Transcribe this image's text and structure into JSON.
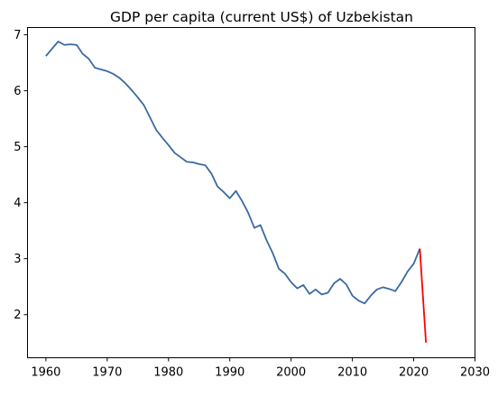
{
  "chart_data": {
    "type": "line",
    "title": "GDP per capita (current US$) of Uzbekistan",
    "xlabel": "",
    "ylabel": "",
    "xlim": [
      1957,
      2030
    ],
    "ylim": [
      1.23,
      7.13
    ],
    "xticks": [
      1960,
      1970,
      1980,
      1990,
      2000,
      2010,
      2020,
      2030
    ],
    "yticks": [
      2,
      3,
      4,
      5,
      6,
      7
    ],
    "grid": false,
    "series": [
      {
        "color": "#3a6aa0",
        "x": [
          1960,
          1961,
          1962,
          1963,
          1964,
          1965,
          1966,
          1967,
          1968,
          1969,
          1970,
          1971,
          1972,
          1973,
          1974,
          1975,
          1976,
          1977,
          1978,
          1979,
          1980,
          1981,
          1982,
          1983,
          1984,
          1985,
          1986,
          1987,
          1988,
          1989,
          1990,
          1991,
          1992,
          1993,
          1994,
          1995,
          1996,
          1997,
          1998,
          1999,
          2000,
          2001,
          2002,
          2003,
          2004,
          2005,
          2006,
          2007,
          2008,
          2009,
          2010,
          2011,
          2012,
          2013,
          2014,
          2015,
          2016,
          2017,
          2018,
          2019,
          2020,
          2021
        ],
        "values": [
          6.62,
          6.75,
          6.88,
          6.82,
          6.83,
          6.82,
          6.66,
          6.57,
          6.41,
          6.38,
          6.35,
          6.3,
          6.23,
          6.13,
          6.01,
          5.88,
          5.74,
          5.52,
          5.3,
          5.16,
          5.03,
          4.89,
          4.81,
          4.73,
          4.72,
          4.69,
          4.67,
          4.52,
          4.29,
          4.19,
          4.08,
          4.21,
          4.03,
          3.82,
          3.55,
          3.6,
          3.33,
          3.1,
          2.82,
          2.73,
          2.58,
          2.47,
          2.53,
          2.37,
          2.45,
          2.36,
          2.39,
          2.56,
          2.64,
          2.54,
          2.34,
          2.25,
          2.2,
          2.34,
          2.45,
          2.49,
          2.46,
          2.42,
          2.58,
          2.77,
          2.91,
          3.18
        ]
      },
      {
        "color": "#ff0000",
        "x": [
          2021,
          2022
        ],
        "values": [
          3.18,
          1.5
        ]
      }
    ]
  }
}
